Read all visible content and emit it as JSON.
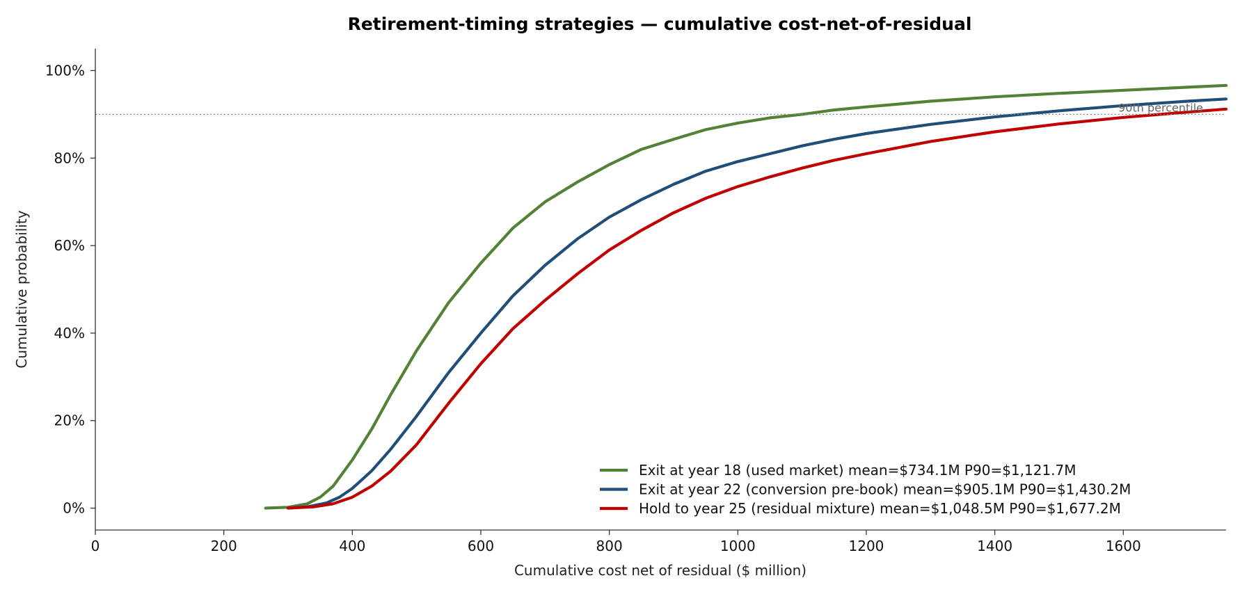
{
  "chart_data": {
    "type": "line",
    "title": "Retirement-timing strategies — cumulative cost-net-of-residual",
    "xlabel": "Cumulative cost net of residual  ($ million)",
    "ylabel": "Cumulative probability",
    "xlim": [
      0,
      1760
    ],
    "ylim": [
      -0.05,
      1.05
    ],
    "x_ticks": [
      0,
      200,
      400,
      600,
      800,
      1000,
      1200,
      1400,
      1600
    ],
    "x_tick_labels": [
      "0",
      "200",
      "400",
      "600",
      "800",
      "1000",
      "1200",
      "1400",
      "1600"
    ],
    "y_ticks": [
      0,
      0.2,
      0.4,
      0.6,
      0.8,
      1.0
    ],
    "y_tick_labels": [
      "0%",
      "20%",
      "40%",
      "60%",
      "80%",
      "100%"
    ],
    "grid": false,
    "legend_position": "bottom-right",
    "reference_line": {
      "y": 0.9,
      "label": "90th percentile"
    },
    "series": [
      {
        "name": "Exit at year 18  (used market)   mean=$734.1M   P90=$1,121.7M",
        "color": "#538135",
        "x": [
          265,
          300,
          330,
          350,
          370,
          400,
          430,
          460,
          500,
          550,
          600,
          650,
          700,
          750,
          800,
          850,
          900,
          950,
          1000,
          1050,
          1100,
          1150,
          1200,
          1300,
          1400,
          1500,
          1600,
          1700,
          1760
        ],
        "y": [
          0.0,
          0.002,
          0.01,
          0.025,
          0.05,
          0.11,
          0.18,
          0.26,
          0.36,
          0.47,
          0.56,
          0.64,
          0.7,
          0.745,
          0.785,
          0.82,
          0.843,
          0.865,
          0.88,
          0.892,
          0.9,
          0.91,
          0.917,
          0.93,
          0.94,
          0.948,
          0.955,
          0.962,
          0.966
        ]
      },
      {
        "name": "Exit at year 22  (conversion pre-book)   mean=$905.1M   P90=$1,430.2M",
        "color": "#1F4E79",
        "x": [
          300,
          330,
          360,
          380,
          400,
          430,
          460,
          500,
          550,
          600,
          650,
          700,
          750,
          800,
          850,
          900,
          950,
          1000,
          1050,
          1100,
          1150,
          1200,
          1300,
          1400,
          1500,
          1600,
          1700,
          1760
        ],
        "y": [
          0.0,
          0.003,
          0.012,
          0.025,
          0.045,
          0.085,
          0.135,
          0.21,
          0.31,
          0.4,
          0.485,
          0.555,
          0.615,
          0.665,
          0.705,
          0.74,
          0.77,
          0.792,
          0.81,
          0.828,
          0.843,
          0.856,
          0.877,
          0.894,
          0.908,
          0.92,
          0.93,
          0.935
        ]
      },
      {
        "name": "Hold to year 25  (residual mixture)   mean=$1,048.5M   P90=$1,677.2M",
        "color": "#C00000",
        "x": [
          300,
          340,
          370,
          400,
          430,
          460,
          500,
          550,
          600,
          650,
          700,
          750,
          800,
          850,
          900,
          950,
          1000,
          1050,
          1100,
          1150,
          1200,
          1300,
          1400,
          1500,
          1600,
          1700,
          1760
        ],
        "y": [
          0.0,
          0.003,
          0.01,
          0.025,
          0.05,
          0.085,
          0.145,
          0.24,
          0.33,
          0.41,
          0.475,
          0.535,
          0.59,
          0.635,
          0.675,
          0.708,
          0.735,
          0.757,
          0.777,
          0.795,
          0.81,
          0.838,
          0.86,
          0.878,
          0.893,
          0.905,
          0.912
        ]
      }
    ]
  }
}
